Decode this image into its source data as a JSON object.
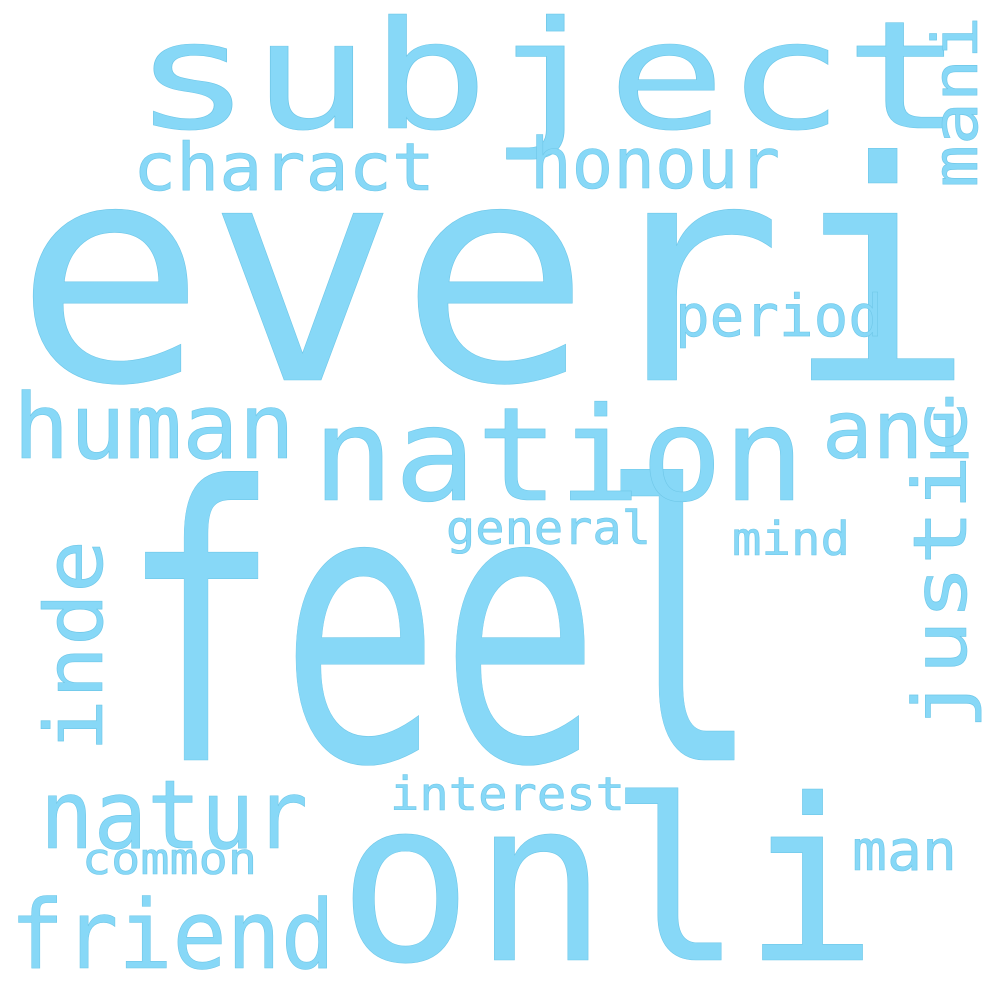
{
  "word_color": "#87d8f7",
  "background_color": "#ffffff",
  "words": {
    "everi": "everi",
    "feel": "feel",
    "subject": "subject",
    "onli": "onli",
    "nation": "nation",
    "human": "human",
    "natur": "natur",
    "friend": "friend",
    "honour": "honour",
    "charact": "charact",
    "period": "period",
    "ani": "ani",
    "mani": "mani",
    "justic": "justic",
    "inde": "inde",
    "general": "general",
    "mind": "mind",
    "interest": "interest",
    "common": "common",
    "man": "man"
  }
}
